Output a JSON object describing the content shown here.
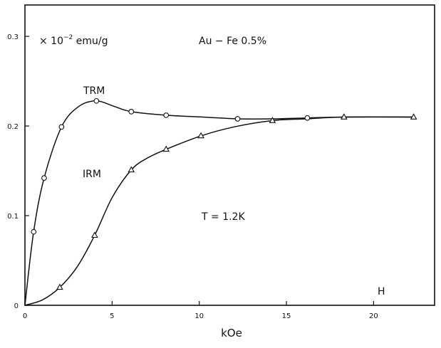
{
  "chart_data": {
    "type": "line",
    "title": "",
    "xlabel": "kOe",
    "ylabel": "",
    "xlim": [
      0,
      23.5
    ],
    "ylim": [
      0,
      0.335
    ],
    "x_ticks": [
      0,
      5,
      10,
      15,
      20
    ],
    "x_tick_labels": [
      "0",
      "5",
      "10",
      "15",
      "20"
    ],
    "y_ticks": [
      0,
      0.1,
      0.2,
      0.3
    ],
    "y_tick_labels": [
      "0",
      "0.1",
      "0.2",
      "0.3"
    ],
    "grid": false,
    "annotations": {
      "units": "× 10",
      "units_exp": "−2",
      "units_rest": " emu/g",
      "sample": "Au − Fe 0.5%",
      "temperature": "T = 1.2K",
      "field_label": "H"
    },
    "series": [
      {
        "name": "TRM",
        "marker": "circle",
        "x": [
          0.5,
          1.1,
          2.1,
          4.1,
          6.1,
          8.1,
          12.2,
          16.2
        ],
        "values": [
          0.082,
          0.142,
          0.199,
          0.228,
          0.216,
          0.212,
          0.208,
          0.209
        ],
        "curve": [
          [
            0,
            0
          ],
          [
            0.5,
            0.082
          ],
          [
            1.1,
            0.142
          ],
          [
            2.1,
            0.199
          ],
          [
            3.1,
            0.222
          ],
          [
            4.1,
            0.228
          ],
          [
            5.1,
            0.222
          ],
          [
            6.1,
            0.216
          ],
          [
            8.1,
            0.212
          ],
          [
            10.2,
            0.21
          ],
          [
            12.2,
            0.208
          ],
          [
            14.2,
            0.208
          ],
          [
            16.2,
            0.209
          ],
          [
            18.3,
            0.21
          ],
          [
            22.3,
            0.21
          ]
        ]
      },
      {
        "name": "IRM",
        "marker": "triangle",
        "x": [
          2.0,
          4.0,
          6.1,
          8.1,
          10.1,
          14.2,
          18.3,
          22.3
        ],
        "values": [
          0.02,
          0.078,
          0.151,
          0.174,
          0.189,
          0.206,
          0.21,
          0.21
        ],
        "curve": [
          [
            0,
            0
          ],
          [
            1.0,
            0.006
          ],
          [
            2.0,
            0.02
          ],
          [
            3.0,
            0.043
          ],
          [
            4.0,
            0.078
          ],
          [
            5.0,
            0.12
          ],
          [
            6.1,
            0.151
          ],
          [
            7.0,
            0.164
          ],
          [
            8.1,
            0.174
          ],
          [
            10.1,
            0.189
          ],
          [
            12.0,
            0.199
          ],
          [
            14.2,
            0.206
          ],
          [
            16.2,
            0.208
          ],
          [
            18.3,
            0.21
          ],
          [
            22.3,
            0.21
          ]
        ]
      }
    ]
  }
}
